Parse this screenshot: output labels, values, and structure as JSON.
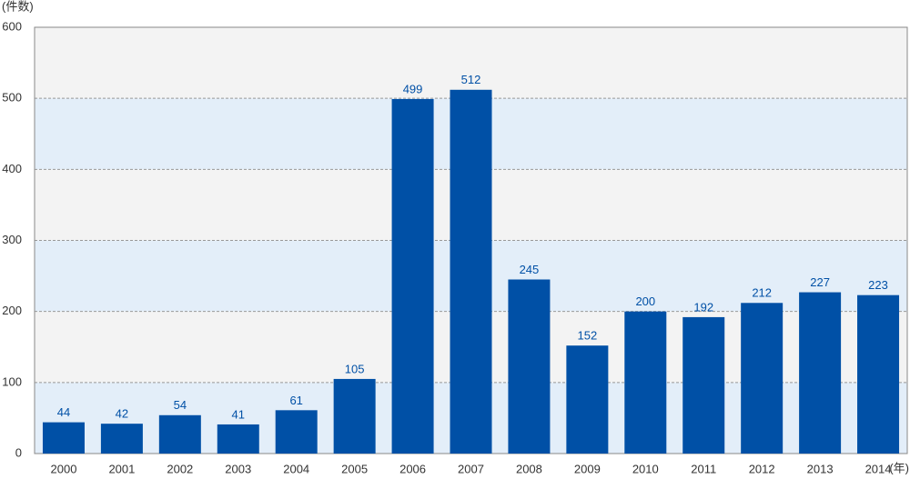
{
  "chart_data": {
    "type": "bar",
    "y_label": "(件数)",
    "x_label": "(年)",
    "categories": [
      "2000",
      "2001",
      "2002",
      "2003",
      "2004",
      "2005",
      "2006",
      "2007",
      "2008",
      "2009",
      "2010",
      "2011",
      "2012",
      "2013",
      "2014"
    ],
    "values": [
      44,
      42,
      54,
      41,
      61,
      105,
      499,
      512,
      245,
      152,
      200,
      192,
      212,
      227,
      223
    ],
    "color": "#0050a6",
    "ylim": [
      0,
      600
    ],
    "yticks": [
      0,
      100,
      200,
      300,
      400,
      500,
      600
    ],
    "grid": true
  }
}
